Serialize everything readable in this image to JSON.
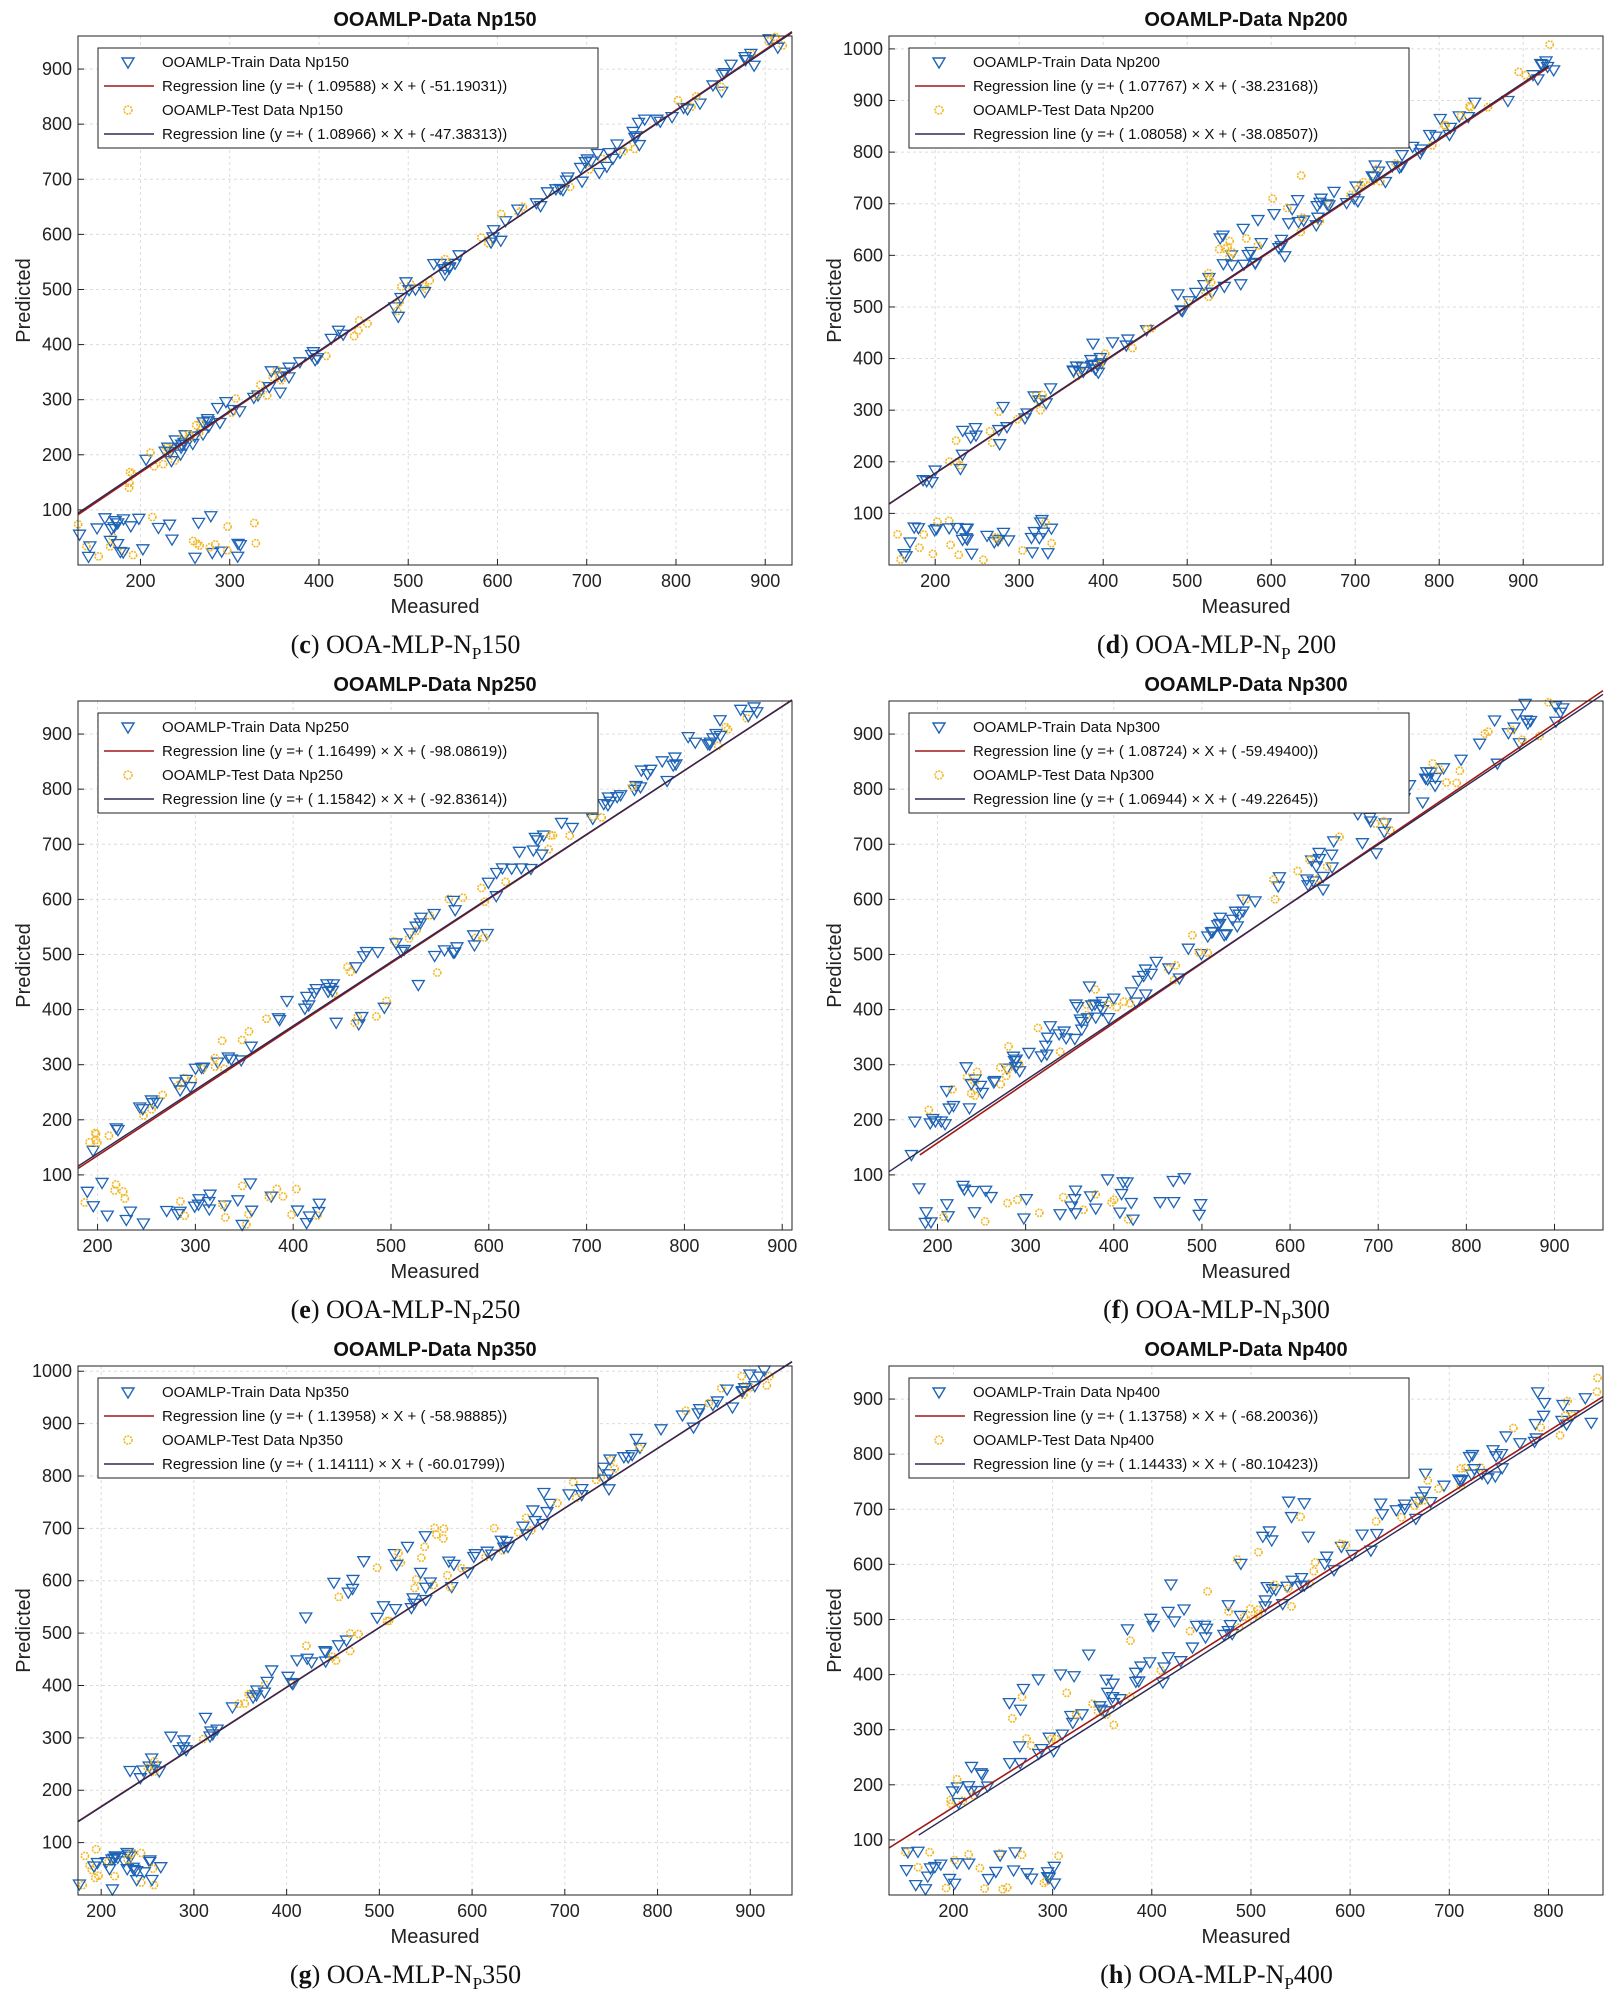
{
  "chart_data": [
    {
      "type": "scatter",
      "title": "OOAMLP-Data Np150",
      "xlabel": "Measured",
      "ylabel": "Predicted",
      "caption": {
        "letter": "c",
        "text": "OOA-MLP-N",
        "sub": "P",
        "suffix": "150"
      },
      "xlim": [
        130,
        930
      ],
      "ylim": [
        0,
        960
      ],
      "xticks": [
        200,
        300,
        400,
        500,
        600,
        700,
        800,
        900
      ],
      "yticks": [
        100,
        200,
        300,
        400,
        500,
        600,
        700,
        800,
        900
      ],
      "legend": [
        "OOAMLP-Train Data Np150",
        "Regression line (y =+ ( 1.09588) × X + ( -51.19031))",
        "OOAMLP-Test Data Np150",
        "Regression line (y =+ ( 1.08966) × X + ( -47.38313))"
      ],
      "train_line": {
        "slope": 1.09588,
        "intercept": -51.19031,
        "x": [
          130,
          930
        ]
      },
      "test_line": {
        "slope": 1.08966,
        "intercept": -47.38313,
        "x": [
          130,
          930
        ]
      },
      "clusters": [
        {
          "x": [
            185,
            930
          ],
          "noise": 25,
          "n": 150,
          "offset": 0
        },
        {
          "x": [
            230,
            290
          ],
          "noise": 15,
          "n": 15,
          "offset": 10
        },
        {
          "x": [
            130,
            330
          ],
          "flat": [
            10,
            90
          ],
          "n": 45
        }
      ]
    },
    {
      "type": "scatter",
      "title": "OOAMLP-Data Np200",
      "xlabel": "Measured",
      "ylabel": "Predicted",
      "caption": {
        "letter": "d",
        "text": "OOA-MLP-N",
        "sub": "P",
        "suffix": " 200"
      },
      "xlim": [
        145,
        995
      ],
      "ylim": [
        0,
        1025
      ],
      "xticks": [
        200,
        300,
        400,
        500,
        600,
        700,
        800,
        900
      ],
      "yticks": [
        100,
        200,
        300,
        400,
        500,
        600,
        700,
        800,
        900,
        1000
      ],
      "legend": [
        "OOAMLP-Train Data Np200",
        "Regression line (y =+ ( 1.07767) × X + ( -38.23168))",
        "OOAMLP-Test Data Np200",
        "Regression line (y =+ ( 1.08058) × X + ( -38.08507))"
      ],
      "train_line": {
        "slope": 1.07767,
        "intercept": -38.23168,
        "x": [
          145,
          930
        ]
      },
      "test_line": {
        "slope": 1.08058,
        "intercept": -38.08507,
        "x": [
          145,
          930
        ]
      },
      "clusters": [
        {
          "x": [
            185,
            940
          ],
          "noise": 30,
          "n": 150,
          "offset": 10
        },
        {
          "x": [
            520,
            640
          ],
          "noise": 40,
          "n": 20,
          "offset": 60
        },
        {
          "x": [
            145,
            340
          ],
          "flat": [
            10,
            90
          ],
          "n": 45
        }
      ]
    },
    {
      "type": "scatter",
      "title": "OOAMLP-Data Np250",
      "xlabel": "Measured",
      "ylabel": "Predicted",
      "caption": {
        "letter": "e",
        "text": "OOA-MLP-N",
        "sub": "P",
        "suffix": "250"
      },
      "xlim": [
        180,
        910
      ],
      "ylim": [
        0,
        960
      ],
      "xticks": [
        200,
        300,
        400,
        500,
        600,
        700,
        800,
        900
      ],
      "yticks": [
        100,
        200,
        300,
        400,
        500,
        600,
        700,
        800,
        900
      ],
      "legend": [
        "OOAMLP-Train Data Np250",
        "Regression line (y =+ ( 1.16499) × X + ( -98.08619))",
        "OOAMLP-Test Data Np250",
        "Regression line (y =+ ( 1.15842) × X + ( -92.83614))"
      ],
      "train_line": {
        "slope": 1.16499,
        "intercept": -98.08619,
        "x": [
          180,
          910
        ]
      },
      "test_line": {
        "slope": 1.15842,
        "intercept": -92.83614,
        "x": [
          180,
          910
        ]
      },
      "clusters": [
        {
          "x": [
            190,
            900
          ],
          "noise": 25,
          "n": 140,
          "offset": 30
        },
        {
          "x": [
            420,
            600
          ],
          "noise": 30,
          "n": 20,
          "offset": -60
        },
        {
          "x": [
            180,
            430
          ],
          "flat": [
            10,
            90
          ],
          "n": 45
        }
      ]
    },
    {
      "type": "scatter",
      "title": "OOAMLP-Data Np300",
      "xlabel": "Measured",
      "ylabel": "Predicted",
      "caption": {
        "letter": "f",
        "text": "OOA-MLP-N",
        "sub": "P",
        "suffix": "300"
      },
      "xlim": [
        145,
        955
      ],
      "ylim": [
        0,
        960
      ],
      "xticks": [
        200,
        300,
        400,
        500,
        600,
        700,
        800,
        900
      ],
      "yticks": [
        100,
        200,
        300,
        400,
        500,
        600,
        700,
        800,
        900
      ],
      "legend": [
        "OOAMLP-Train Data Np300",
        "Regression line (y =+ ( 1.08724) × X + ( -59.49400))",
        "OOAMLP-Test Data Np300",
        "Regression line (y =+ ( 1.06944) × X + ( -49.22645))"
      ],
      "train_line": {
        "slope": 1.08724,
        "intercept": -59.494,
        "x": [
          180,
          955
        ]
      },
      "test_line": {
        "slope": 1.06944,
        "intercept": -49.22645,
        "x": [
          145,
          955
        ]
      },
      "clusters": [
        {
          "x": [
            170,
            950
          ],
          "noise": 40,
          "n": 160,
          "offset": 40
        },
        {
          "x": [
            180,
            400
          ],
          "noise": 40,
          "n": 30,
          "offset": 60
        },
        {
          "x": [
            160,
            510
          ],
          "flat": [
            10,
            95
          ],
          "n": 45
        }
      ]
    },
    {
      "type": "scatter",
      "title": "OOAMLP-Data Np350",
      "xlabel": "Measured",
      "ylabel": "Predicted",
      "caption": {
        "letter": "g",
        "text": "OOA-MLP-N",
        "sub": "P",
        "suffix": "350"
      },
      "xlim": [
        175,
        945
      ],
      "ylim": [
        0,
        1010
      ],
      "xticks": [
        200,
        300,
        400,
        500,
        600,
        700,
        800,
        900
      ],
      "yticks": [
        100,
        200,
        300,
        400,
        500,
        600,
        700,
        800,
        900,
        1000
      ],
      "legend": [
        "OOAMLP-Train Data Np350",
        "Regression line (y =+ ( 1.13958) × X + ( -58.98885))",
        "OOAMLP-Test Data Np350",
        "Regression line (y =+ ( 1.14111) × X + ( -60.01799))"
      ],
      "train_line": {
        "slope": 1.13958,
        "intercept": -58.98885,
        "x": [
          175,
          945
        ]
      },
      "test_line": {
        "slope": 1.14111,
        "intercept": -60.01799,
        "x": [
          175,
          945
        ]
      },
      "clusters": [
        {
          "x": [
            230,
            940
          ],
          "noise": 30,
          "n": 150,
          "offset": 20
        },
        {
          "x": [
            420,
            570
          ],
          "noise": 35,
          "n": 20,
          "offset": 120
        },
        {
          "x": [
            175,
            265
          ],
          "flat": [
            10,
            90
          ],
          "n": 40
        }
      ]
    },
    {
      "type": "scatter",
      "title": "OOAMLP-Data Np400",
      "xlabel": "Measured",
      "ylabel": "Predicted",
      "caption": {
        "letter": "h",
        "text": "OOA-MLP-N",
        "sub": "P",
        "suffix": "400"
      },
      "xlim": [
        135,
        855
      ],
      "ylim": [
        0,
        960
      ],
      "xticks": [
        200,
        300,
        400,
        500,
        600,
        700,
        800
      ],
      "yticks": [
        100,
        200,
        300,
        400,
        500,
        600,
        700,
        800,
        900
      ],
      "legend": [
        "OOAMLP-Train Data Np400",
        "Regression line (y =+ ( 1.13758) × X + ( -68.20036))",
        "OOAMLP-Test Data Np400",
        "Regression line (y =+ ( 1.14433) × X + ( -80.10423))"
      ],
      "train_line": {
        "slope": 1.13758,
        "intercept": -68.20036,
        "x": [
          135,
          855
        ]
      },
      "test_line": {
        "slope": 1.14433,
        "intercept": -80.10423,
        "x": [
          165,
          855
        ]
      },
      "clusters": [
        {
          "x": [
            195,
            850
          ],
          "noise": 40,
          "n": 160,
          "offset": 20
        },
        {
          "x": [
            220,
            560
          ],
          "noise": 45,
          "n": 30,
          "offset": 110
        },
        {
          "x": [
            140,
            310
          ],
          "flat": [
            10,
            90
          ],
          "n": 40
        }
      ]
    }
  ]
}
